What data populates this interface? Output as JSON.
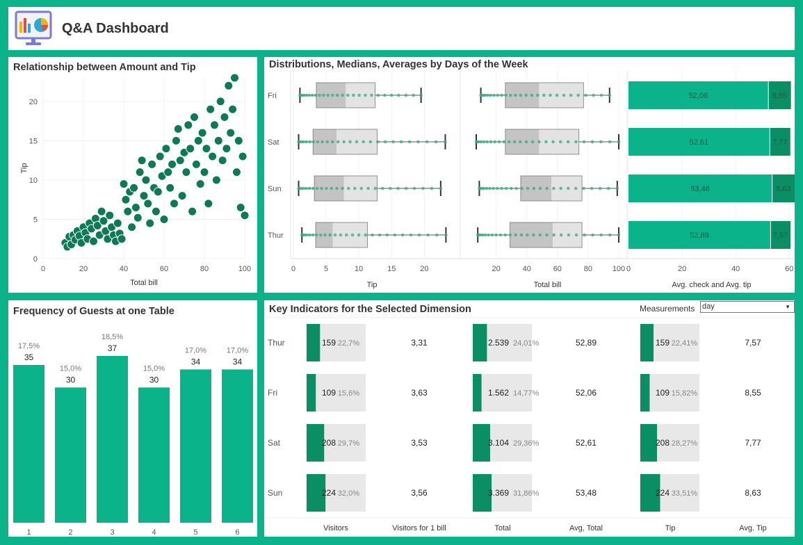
{
  "app": {
    "title": "Q&A Dashboard"
  },
  "scatter": {
    "title": "Relationship between Amount and Tip",
    "chart_data": {
      "type": "scatter",
      "xlabel": "Total bill",
      "ylabel": "Tip",
      "xlim": [
        0,
        100
      ],
      "ylim": [
        0,
        23
      ],
      "xticks": [
        0,
        20,
        40,
        60,
        80,
        100
      ],
      "yticks": [
        0,
        5,
        10,
        15,
        20
      ],
      "points": [
        [
          11,
          2
        ],
        [
          12,
          1.5
        ],
        [
          13,
          2.8
        ],
        [
          14,
          1.8
        ],
        [
          15,
          3
        ],
        [
          16,
          2.4
        ],
        [
          17,
          3.5
        ],
        [
          18,
          2.9
        ],
        [
          19,
          2
        ],
        [
          20,
          4
        ],
        [
          21,
          3.3
        ],
        [
          22,
          2.5
        ],
        [
          23,
          4.5
        ],
        [
          24,
          3.8
        ],
        [
          25,
          2.2
        ],
        [
          26,
          5.1
        ],
        [
          27,
          4.2
        ],
        [
          28,
          3
        ],
        [
          29,
          6
        ],
        [
          30,
          4.8
        ],
        [
          31,
          3.5
        ],
        [
          32,
          2.5
        ],
        [
          33,
          5.5
        ],
        [
          34,
          4
        ],
        [
          35,
          3
        ],
        [
          36,
          2.2
        ],
        [
          37,
          4.5
        ],
        [
          38,
          3.2
        ],
        [
          39,
          2.5
        ],
        [
          40,
          9.5
        ],
        [
          41,
          7.5
        ],
        [
          42,
          6
        ],
        [
          43,
          8.5
        ],
        [
          44,
          4
        ],
        [
          45,
          9
        ],
        [
          46,
          6.5
        ],
        [
          47,
          5.2
        ],
        [
          48,
          11
        ],
        [
          49,
          12.5
        ],
        [
          50,
          8
        ],
        [
          51,
          10
        ],
        [
          52,
          7
        ],
        [
          53,
          4.5
        ],
        [
          54,
          12
        ],
        [
          55,
          9
        ],
        [
          56,
          6
        ],
        [
          57,
          8.5
        ],
        [
          58,
          13
        ],
        [
          59,
          10.5
        ],
        [
          60,
          5
        ],
        [
          61,
          14
        ],
        [
          62,
          11
        ],
        [
          63,
          9
        ],
        [
          64,
          12
        ],
        [
          65,
          7
        ],
        [
          66,
          15
        ],
        [
          67,
          16.5
        ],
        [
          68,
          12.5
        ],
        [
          69,
          8
        ],
        [
          70,
          13.5
        ],
        [
          71,
          11
        ],
        [
          72,
          17
        ],
        [
          73,
          14
        ],
        [
          74,
          6
        ],
        [
          75,
          18
        ],
        [
          76,
          12
        ],
        [
          77,
          15
        ],
        [
          78,
          9.5
        ],
        [
          79,
          16
        ],
        [
          80,
          11
        ],
        [
          81,
          14
        ],
        [
          82,
          7
        ],
        [
          83,
          19
        ],
        [
          84,
          13
        ],
        [
          85,
          17
        ],
        [
          86,
          10
        ],
        [
          87,
          15
        ],
        [
          88,
          20
        ],
        [
          89,
          12.5
        ],
        [
          90,
          18
        ],
        [
          91,
          14
        ],
        [
          92,
          22
        ],
        [
          93,
          16
        ],
        [
          94,
          19
        ],
        [
          95,
          23
        ],
        [
          96,
          11
        ],
        [
          97,
          15
        ],
        [
          98,
          6.5
        ],
        [
          99,
          13
        ],
        [
          100,
          5.5
        ]
      ]
    }
  },
  "distributions": {
    "title": "Distributions, Medians, Averages by Days of the Week",
    "days": [
      "Fri",
      "Sat",
      "Sun",
      "Thur"
    ],
    "tip_chart": {
      "type": "box",
      "xlabel": "Tip",
      "xlim": [
        0,
        24
      ],
      "xticks": [
        0,
        5,
        10,
        15,
        20
      ],
      "rows": [
        {
          "day": "Fri",
          "min": 1,
          "q1": 3.5,
          "median": 8,
          "q3": 12.5,
          "max": 19.5
        },
        {
          "day": "Sat",
          "min": 0.8,
          "q1": 3,
          "median": 6.6,
          "q3": 12.8,
          "max": 23.2
        },
        {
          "day": "Sun",
          "min": 0.8,
          "q1": 3.2,
          "median": 7.7,
          "q3": 12.8,
          "max": 22.5
        },
        {
          "day": "Thur",
          "min": 1.3,
          "q1": 3.4,
          "median": 6,
          "q3": 11.3,
          "max": 23.3
        }
      ]
    },
    "bill_chart": {
      "type": "box",
      "xlabel": "Total bill",
      "xlim": [
        7,
        100
      ],
      "xticks": [
        20,
        40,
        60,
        80,
        100
      ],
      "rows": [
        {
          "day": "Fri",
          "min": 10,
          "q1": 26,
          "median": 48,
          "q3": 77,
          "max": 94
        },
        {
          "day": "Sat",
          "min": 7,
          "q1": 26,
          "median": 48,
          "q3": 74,
          "max": 100
        },
        {
          "day": "Sun",
          "min": 9,
          "q1": 36,
          "median": 56,
          "q3": 76,
          "max": 99
        },
        {
          "day": "Thur",
          "min": 8,
          "q1": 29,
          "median": 57,
          "q3": 76,
          "max": 100
        }
      ]
    },
    "avg_chart": {
      "type": "bar",
      "xlabel": "Avg. check and Avg. tip",
      "xlim": [
        0,
        62
      ],
      "xticks": [
        0,
        20,
        40,
        60
      ],
      "rows": [
        {
          "day": "Fri",
          "check": 52.06,
          "tip": 8.55,
          "check_label": "52,06",
          "tip_label": "8,55"
        },
        {
          "day": "Sat",
          "check": 52.61,
          "tip": 7.77,
          "check_label": "52,61",
          "tip_label": "7,77"
        },
        {
          "day": "Sun",
          "check": 53.48,
          "tip": 8.63,
          "check_label": "53,48",
          "tip_label": "8,63"
        },
        {
          "day": "Thur",
          "check": 52.89,
          "tip": 7.57,
          "check_label": "52,89",
          "tip_label": "7,57"
        }
      ]
    }
  },
  "frequency": {
    "title": "Frequency of Guests at one Table",
    "chart_data": {
      "type": "bar",
      "categories": [
        "1",
        "2",
        "3",
        "4",
        "5",
        "6"
      ],
      "values": [
        35,
        30,
        37,
        30,
        34,
        34
      ],
      "percents": [
        "17,5%",
        "15,0%",
        "18,5%",
        "15,0%",
        "17,0%",
        "17,0%"
      ],
      "ylim": [
        0,
        45
      ]
    }
  },
  "kpi": {
    "title": "Key Indicators for the Selected Dimension",
    "measurements_label": "Measurements",
    "dropdown_value": "day",
    "columns": [
      "Visitors",
      "Visitors for 1 bill",
      "Total",
      "Avg, Total",
      "Tip",
      "Avg. Tip"
    ],
    "rows": [
      {
        "day": "Thur",
        "visitors": "159",
        "visitors_pct": "22,7%",
        "visitors_frac": 0.227,
        "per_bill": "3,31",
        "total": "2.539",
        "total_pct": "24,01%",
        "total_frac": 0.2401,
        "avg_total": "52,89",
        "tip": "159",
        "tip_pct": "22,41%",
        "tip_frac": 0.2241,
        "avg_tip": "7,57"
      },
      {
        "day": "Fri",
        "visitors": "109",
        "visitors_pct": "15,6%",
        "visitors_frac": 0.156,
        "per_bill": "3,63",
        "total": "1.562",
        "total_pct": "14,77%",
        "total_frac": 0.1477,
        "avg_total": "52,06",
        "tip": "109",
        "tip_pct": "15,82%",
        "tip_frac": 0.1582,
        "avg_tip": "8,55"
      },
      {
        "day": "Sat",
        "visitors": "208",
        "visitors_pct": "29,7%",
        "visitors_frac": 0.297,
        "per_bill": "3,53",
        "total": "3.104",
        "total_pct": "29,36%",
        "total_frac": 0.2936,
        "avg_total": "52,61",
        "tip": "208",
        "tip_pct": "28,27%",
        "tip_frac": 0.2827,
        "avg_tip": "7,77"
      },
      {
        "day": "Sun",
        "visitors": "224",
        "visitors_pct": "32,0%",
        "visitors_frac": 0.32,
        "per_bill": "3,56",
        "total": "3.369",
        "total_pct": "31,86%",
        "total_frac": 0.3186,
        "avg_total": "53,48",
        "tip": "224",
        "tip_pct": "33,51%",
        "tip_frac": 0.3351,
        "avg_tip": "8,63"
      }
    ]
  },
  "colors": {
    "accent": "#0ab389",
    "dot": "#0b7a55",
    "dark_green": "#0a8f64",
    "box_dark": "#c4c4c4",
    "box_light": "#e3e3e3"
  }
}
